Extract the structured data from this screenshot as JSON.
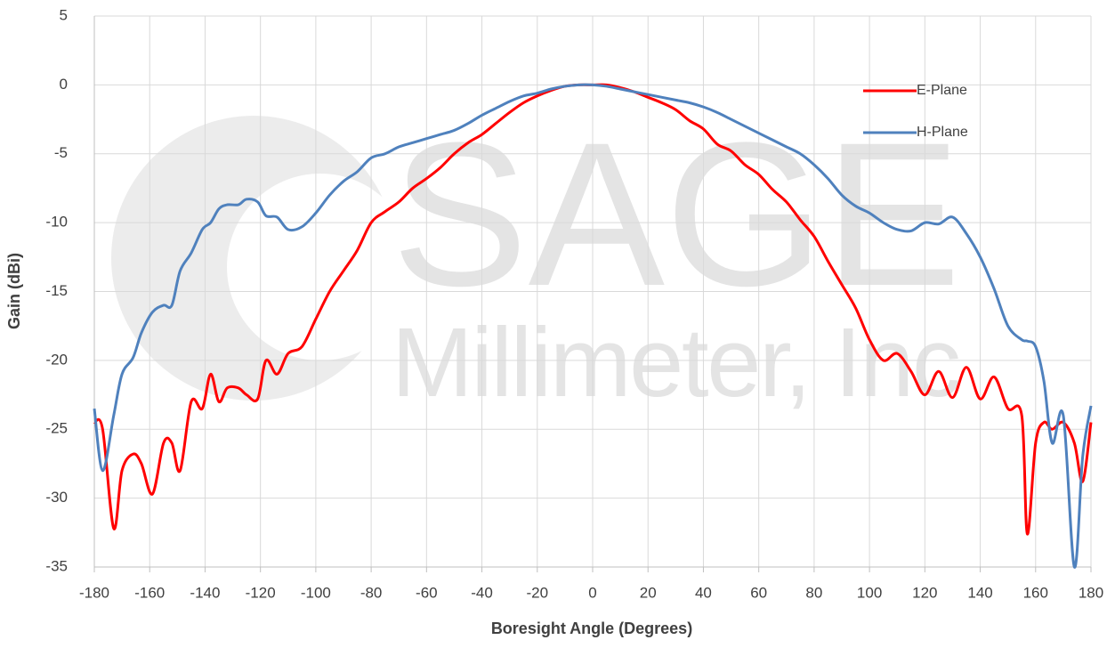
{
  "chart_data": {
    "type": "line",
    "watermark": {
      "title": "SAGE",
      "subtitle": "Millimeter, Inc"
    },
    "xlabel": "Boresight Angle (Degrees)",
    "ylabel": "Gain (dBi)",
    "x": [
      -180,
      -177,
      -173,
      -170,
      -166,
      -163,
      -159,
      -155,
      -152,
      -149,
      -145,
      -141,
      -138,
      -135,
      -132,
      -128,
      -125,
      -121,
      -118,
      -114,
      -110,
      -105,
      -100,
      -95,
      -90,
      -85,
      -80,
      -75,
      -70,
      -65,
      -60,
      -55,
      -50,
      -45,
      -40,
      -35,
      -30,
      -25,
      -20,
      -15,
      -10,
      -5,
      0,
      5,
      10,
      15,
      20,
      25,
      30,
      35,
      40,
      45,
      50,
      55,
      60,
      65,
      70,
      75,
      80,
      85,
      90,
      95,
      100,
      105,
      110,
      115,
      120,
      125,
      130,
      135,
      140,
      145,
      150,
      155,
      157,
      160,
      163,
      166,
      170,
      174,
      177,
      180
    ],
    "series": [
      {
        "name": "E-Plane",
        "color": "#ff0000",
        "values": [
          -24.5,
          -25,
          -32.2,
          -28,
          -26.8,
          -27.5,
          -29.7,
          -26,
          -26,
          -28,
          -23,
          -23.5,
          -21,
          -23,
          -22,
          -22,
          -22.5,
          -22.8,
          -20,
          -21,
          -19.5,
          -19,
          -17,
          -15,
          -13.5,
          -12,
          -10,
          -9.2,
          -8.5,
          -7.5,
          -6.8,
          -6,
          -5,
          -4.2,
          -3.6,
          -2.8,
          -2,
          -1.3,
          -0.8,
          -0.4,
          -0.1,
          0,
          0,
          0,
          -0.2,
          -0.5,
          -0.9,
          -1.3,
          -1.8,
          -2.6,
          -3.2,
          -4.3,
          -4.8,
          -5.8,
          -6.5,
          -7.6,
          -8.5,
          -9.8,
          -11,
          -12.8,
          -14.5,
          -16.2,
          -18.5,
          -20,
          -19.5,
          -20.8,
          -22.5,
          -20.8,
          -22.7,
          -20.5,
          -22.8,
          -21.2,
          -23.5,
          -24,
          -32.6,
          -26,
          -24.5,
          -25,
          -24.5,
          -26,
          -28.8,
          -24.5
        ]
      },
      {
        "name": "H-Plane",
        "color": "#4f81bd",
        "values": [
          -23.5,
          -28,
          -24,
          -21,
          -19.8,
          -18,
          -16.5,
          -16,
          -16,
          -13.5,
          -12.2,
          -10.5,
          -10,
          -9,
          -8.7,
          -8.7,
          -8.3,
          -8.5,
          -9.5,
          -9.6,
          -10.5,
          -10.3,
          -9.3,
          -8,
          -7,
          -6.3,
          -5.3,
          -5,
          -4.5,
          -4.2,
          -3.9,
          -3.6,
          -3.3,
          -2.8,
          -2.2,
          -1.7,
          -1.2,
          -0.8,
          -0.6,
          -0.3,
          -0.1,
          0,
          0,
          -0.1,
          -0.3,
          -0.5,
          -0.7,
          -0.9,
          -1.1,
          -1.3,
          -1.6,
          -2,
          -2.5,
          -3,
          -3.5,
          -4,
          -4.5,
          -5,
          -5.8,
          -6.8,
          -8,
          -8.8,
          -9.3,
          -10,
          -10.5,
          -10.6,
          -10,
          -10.1,
          -9.6,
          -10.8,
          -12.5,
          -14.8,
          -17.5,
          -18.5,
          -18.6,
          -19,
          -21.5,
          -26,
          -24,
          -35,
          -27,
          -23.3
        ]
      }
    ],
    "xlim": [
      -180,
      180
    ],
    "xticks": [
      -180,
      -160,
      -140,
      -120,
      -100,
      -80,
      -60,
      -40,
      -20,
      0,
      20,
      40,
      60,
      80,
      100,
      120,
      140,
      160,
      180
    ],
    "ylim": [
      -35,
      5
    ],
    "yticks": [
      -35,
      -30,
      -25,
      -20,
      -15,
      -10,
      -5,
      0,
      5
    ],
    "grid": true,
    "legend": "upper right"
  }
}
